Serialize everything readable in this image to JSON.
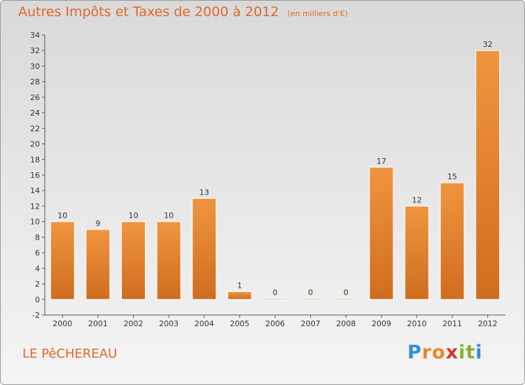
{
  "title": "Autres Impôts et Taxes de 2000 à 2012",
  "subtitle": "(en milliers d'€)",
  "commune": "LE PêCHEREAU",
  "brand": {
    "letters": [
      {
        "ch": "P",
        "color": "#2f8fd6"
      },
      {
        "ch": "r",
        "color": "#e5892a"
      },
      {
        "ch": "o",
        "color": "#e5892a"
      },
      {
        "ch": "x",
        "color": "#d7352a"
      },
      {
        "ch": "i",
        "color": "#7fb431"
      },
      {
        "ch": "t",
        "color": "#7fb431"
      },
      {
        "ch": "i",
        "color": "#2f8fd6"
      }
    ]
  },
  "chart_data": {
    "type": "bar",
    "categories": [
      "2000",
      "2001",
      "2002",
      "2003",
      "2004",
      "2005",
      "2006",
      "2007",
      "2008",
      "2009",
      "2010",
      "2011",
      "2012"
    ],
    "values": [
      10,
      9,
      10,
      10,
      13,
      1,
      0,
      0,
      0,
      17,
      12,
      15,
      32
    ],
    "ylim": [
      -2,
      34
    ],
    "yticks": [
      -2,
      0,
      2,
      4,
      6,
      8,
      10,
      12,
      14,
      16,
      18,
      20,
      22,
      24,
      26,
      28,
      30,
      32,
      34
    ],
    "bar_color": "#f0953f",
    "bar_color_dark": "#cf6d1f",
    "grid": false,
    "legend": "none"
  }
}
